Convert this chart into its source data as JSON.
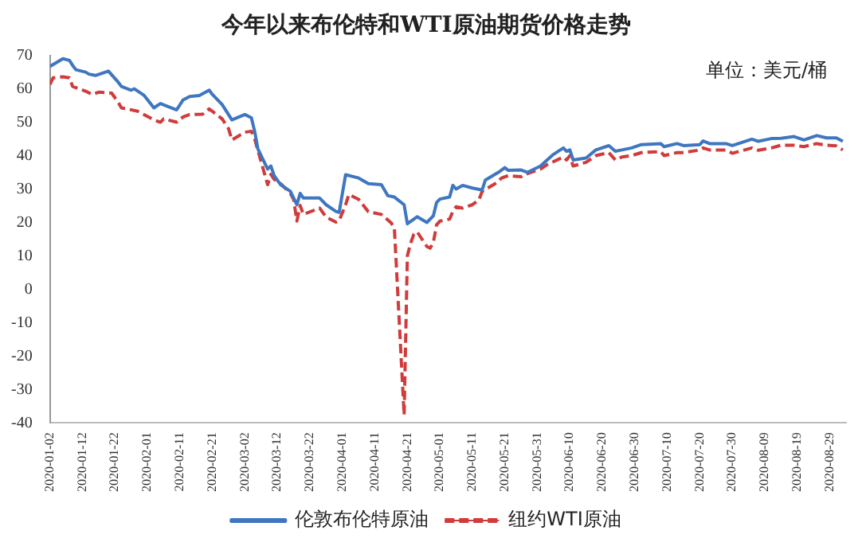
{
  "chart_data": {
    "type": "line",
    "title": "今年以来布伦特和WTI原油期货价格走势",
    "annotations": [
      "单位：美元/桶"
    ],
    "xlim": [
      "2020-01-02",
      "2020-09-03"
    ],
    "xticks": [
      "2020-01-02",
      "2020-01-12",
      "2020-01-22",
      "2020-02-01",
      "2020-02-11",
      "2020-02-21",
      "2020-03-02",
      "2020-03-12",
      "2020-03-22",
      "2020-04-01",
      "2020-04-11",
      "2020-04-21",
      "2020-05-01",
      "2020-05-11",
      "2020-05-21",
      "2020-05-31",
      "2020-06-10",
      "2020-06-20",
      "2020-06-30",
      "2020-07-10",
      "2020-07-20",
      "2020-07-30",
      "2020-08-09",
      "2020-08-19",
      "2020-08-29"
    ],
    "ylim": [
      -40,
      70
    ],
    "yticks": [
      -40,
      -30,
      -20,
      -10,
      0,
      10,
      20,
      30,
      40,
      50,
      60,
      70
    ],
    "grid": false,
    "legend": "bottom",
    "marker": "none",
    "series": [
      {
        "name": "伦敦布伦特原油",
        "color": "#3f76c0",
        "line_style": "solid",
        "x": [
          "2020-01-02",
          "2020-01-06",
          "2020-01-08",
          "2020-01-09",
          "2020-01-10",
          "2020-01-13",
          "2020-01-14",
          "2020-01-16",
          "2020-01-20",
          "2020-01-23",
          "2020-01-24",
          "2020-01-27",
          "2020-01-28",
          "2020-01-31",
          "2020-02-03",
          "2020-02-05",
          "2020-02-10",
          "2020-02-12",
          "2020-02-14",
          "2020-02-17",
          "2020-02-20",
          "2020-02-21",
          "2020-02-24",
          "2020-02-27",
          "2020-03-02",
          "2020-03-04",
          "2020-03-05",
          "2020-03-06",
          "2020-03-09",
          "2020-03-10",
          "2020-03-11",
          "2020-03-13",
          "2020-03-16",
          "2020-03-18",
          "2020-03-19",
          "2020-03-20",
          "2020-03-25",
          "2020-03-27",
          "2020-03-30",
          "2020-03-31",
          "2020-04-02",
          "2020-04-06",
          "2020-04-09",
          "2020-04-13",
          "2020-04-15",
          "2020-04-17",
          "2020-04-20",
          "2020-04-21",
          "2020-04-24",
          "2020-04-27",
          "2020-04-29",
          "2020-04-30",
          "2020-05-01",
          "2020-05-04",
          "2020-05-05",
          "2020-05-06",
          "2020-05-08",
          "2020-05-11",
          "2020-05-14",
          "2020-05-15",
          "2020-05-19",
          "2020-05-21",
          "2020-05-22",
          "2020-05-26",
          "2020-05-28",
          "2020-06-01",
          "2020-06-03",
          "2020-06-05",
          "2020-06-08",
          "2020-06-09",
          "2020-06-10",
          "2020-06-11",
          "2020-06-15",
          "2020-06-18",
          "2020-06-22",
          "2020-06-24",
          "2020-06-26",
          "2020-06-29",
          "2020-07-02",
          "2020-07-08",
          "2020-07-09",
          "2020-07-13",
          "2020-07-15",
          "2020-07-20",
          "2020-07-21",
          "2020-07-23",
          "2020-07-28",
          "2020-07-30",
          "2020-08-05",
          "2020-08-07",
          "2020-08-11",
          "2020-08-14",
          "2020-08-18",
          "2020-08-21",
          "2020-08-25",
          "2020-08-28",
          "2020-08-31",
          "2020-09-02"
        ],
        "values": [
          66.7,
          69,
          68.5,
          67,
          65.7,
          65,
          64.4,
          64,
          65.3,
          62,
          60.7,
          59.6,
          60,
          58,
          54.3,
          55.6,
          53.7,
          56.7,
          57.7,
          58,
          59.6,
          58.3,
          55.3,
          50.7,
          52.3,
          51.3,
          47.3,
          42,
          36,
          36.9,
          34,
          31.3,
          29.3,
          25.3,
          28.7,
          27.3,
          27.3,
          25.3,
          23.3,
          23,
          34.3,
          33.3,
          31.6,
          31.3,
          28,
          27.6,
          25.3,
          19.6,
          21.7,
          20,
          22,
          26,
          27,
          27.6,
          31.1,
          30,
          31.1,
          30.3,
          29.7,
          32.7,
          35,
          36.4,
          35.6,
          35.7,
          35,
          36.9,
          38.7,
          40.4,
          42.3,
          41.3,
          41.7,
          38.7,
          39.3,
          41.7,
          43,
          41.3,
          41.7,
          42.3,
          43.3,
          43.6,
          42.7,
          43.6,
          43,
          43.3,
          44.4,
          43.6,
          43.6,
          43,
          44.9,
          44.3,
          45.1,
          45.2,
          45.7,
          44.7,
          46,
          45.3,
          45.3,
          44.3
        ]
      },
      {
        "name": "纽约WTI原油",
        "color": "#d03b3b",
        "line_style": "dashed",
        "x": [
          "2020-01-02",
          "2020-01-03",
          "2020-01-06",
          "2020-01-08",
          "2020-01-09",
          "2020-01-13",
          "2020-01-15",
          "2020-01-17",
          "2020-01-21",
          "2020-01-23",
          "2020-01-24",
          "2020-01-29",
          "2020-02-03",
          "2020-02-05",
          "2020-02-06",
          "2020-02-10",
          "2020-02-12",
          "2020-02-14",
          "2020-02-18",
          "2020-02-20",
          "2020-02-24",
          "2020-02-26",
          "2020-02-27",
          "2020-03-02",
          "2020-03-04",
          "2020-03-05",
          "2020-03-09",
          "2020-03-10",
          "2020-03-11",
          "2020-03-13",
          "2020-03-16",
          "2020-03-17",
          "2020-03-18",
          "2020-03-19",
          "2020-03-20",
          "2020-03-25",
          "2020-03-27",
          "2020-03-30",
          "2020-03-31",
          "2020-04-02",
          "2020-04-03",
          "2020-04-06",
          "2020-04-09",
          "2020-04-13",
          "2020-04-16",
          "2020-04-17",
          "2020-04-20",
          "2020-04-21",
          "2020-04-22",
          "2020-04-23",
          "2020-04-24",
          "2020-04-27",
          "2020-04-28",
          "2020-04-29",
          "2020-04-30",
          "2020-05-01",
          "2020-05-04",
          "2020-05-05",
          "2020-05-06",
          "2020-05-08",
          "2020-05-11",
          "2020-05-13",
          "2020-05-14",
          "2020-05-18",
          "2020-05-20",
          "2020-05-22",
          "2020-05-26",
          "2020-05-27",
          "2020-05-29",
          "2020-06-01",
          "2020-06-03",
          "2020-06-08",
          "2020-06-09",
          "2020-06-10",
          "2020-06-11",
          "2020-06-15",
          "2020-06-18",
          "2020-06-22",
          "2020-06-24",
          "2020-06-26",
          "2020-06-29",
          "2020-07-02",
          "2020-07-08",
          "2020-07-09",
          "2020-07-13",
          "2020-07-15",
          "2020-07-20",
          "2020-07-21",
          "2020-07-23",
          "2020-07-28",
          "2020-07-30",
          "2020-08-05",
          "2020-08-07",
          "2020-08-11",
          "2020-08-14",
          "2020-08-18",
          "2020-08-21",
          "2020-08-25",
          "2020-08-28",
          "2020-08-31",
          "2020-09-02"
        ],
        "values": [
          61.3,
          63.3,
          63.6,
          63.3,
          60.7,
          59.3,
          58.3,
          59,
          58.7,
          56,
          54.3,
          53.3,
          50.7,
          50,
          51,
          50,
          51.6,
          52.3,
          52.4,
          54,
          51,
          48,
          44.7,
          47,
          47.3,
          45,
          31.3,
          34.4,
          32.9,
          31.6,
          28.7,
          26.9,
          20.4,
          25.1,
          22.4,
          24.3,
          21.6,
          20.1,
          20.5,
          25.3,
          28.4,
          26.9,
          23.2,
          22.4,
          19.9,
          18.3,
          -37.6,
          10,
          13.8,
          16.5,
          17.2,
          12.8,
          12.3,
          14,
          19.3,
          20.4,
          21,
          23.3,
          24.7,
          24.3,
          25.3,
          26.7,
          29.3,
          31.6,
          33.3,
          34,
          33.7,
          34.3,
          35,
          36,
          37.3,
          39.6,
          38.7,
          40,
          36.9,
          38,
          40,
          40.9,
          38.7,
          39.6,
          40,
          40.9,
          41.2,
          40,
          40.9,
          40.9,
          41.7,
          42.3,
          41.7,
          41.7,
          40.7,
          42.3,
          41.6,
          42.3,
          43.1,
          43.1,
          42.7,
          43.6,
          43.1,
          42.9,
          41.7
        ]
      }
    ]
  }
}
